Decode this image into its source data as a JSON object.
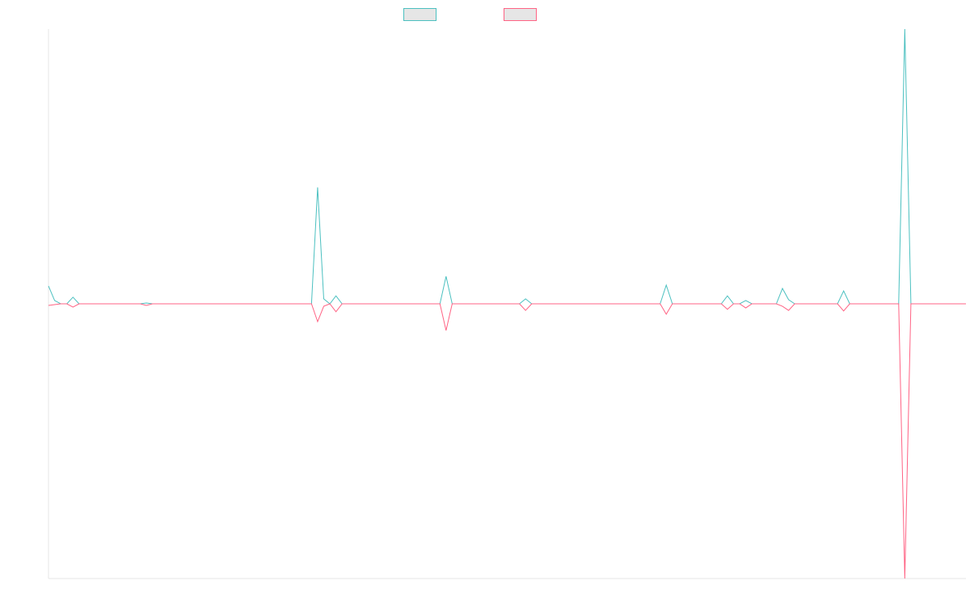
{
  "chart_data": {
    "type": "line",
    "legend": "top",
    "ylim": [
      -100,
      100
    ],
    "series": [
      {
        "color": "#4bc0c0",
        "values": [
          6.5,
          1.2,
          0,
          0,
          2.4,
          0,
          0,
          0,
          0,
          0,
          0,
          0,
          0,
          0,
          0,
          0,
          0.3,
          0,
          0,
          0,
          0,
          0,
          0,
          0,
          0,
          0,
          0,
          0,
          0,
          0,
          0,
          0,
          0,
          0,
          0,
          0,
          0,
          0,
          0,
          0,
          0,
          0,
          0,
          0,
          42.4,
          1.8,
          0,
          2.9,
          0,
          0,
          0,
          0,
          0,
          0,
          0,
          0,
          0,
          0,
          0,
          0,
          0,
          0,
          0,
          0,
          0,
          10,
          0,
          0,
          0,
          0,
          0,
          0,
          0,
          0,
          0,
          0,
          0,
          0,
          1.8,
          0,
          0,
          0,
          0,
          0,
          0,
          0,
          0,
          0,
          0,
          0,
          0,
          0,
          0,
          0,
          0,
          0,
          0,
          0,
          0,
          0,
          0,
          6.8,
          0,
          0,
          0,
          0,
          0,
          0,
          0,
          0,
          0,
          2.9,
          0,
          0,
          1.2,
          0,
          0,
          0,
          0,
          0,
          5.6,
          1.5,
          0,
          0,
          0,
          0,
          0,
          0,
          0,
          0,
          4.7,
          0,
          0,
          0,
          0,
          0,
          0,
          0,
          0,
          0,
          100,
          0,
          0,
          0,
          0,
          0,
          0,
          0,
          0,
          0,
          0
        ]
      },
      {
        "color": "#ff6384",
        "values": [
          -0.6,
          -0.3,
          0,
          0,
          -1.2,
          0,
          0,
          0,
          0,
          0,
          0,
          0,
          0,
          0,
          0,
          0,
          -0.6,
          0,
          0,
          0,
          0,
          0,
          0,
          0,
          0,
          0,
          0,
          0,
          0,
          0,
          0,
          0,
          0,
          0,
          0,
          0,
          0,
          0,
          0,
          0,
          0,
          0,
          0,
          0,
          -6.5,
          -0.9,
          0,
          -2.9,
          0,
          0,
          0,
          0,
          0,
          0,
          0,
          0,
          0,
          0,
          0,
          0,
          0,
          0,
          0,
          0,
          0,
          -9.7,
          0,
          0,
          0,
          0,
          0,
          0,
          0,
          0,
          0,
          0,
          0,
          0,
          -2.4,
          0,
          0,
          0,
          0,
          0,
          0,
          0,
          0,
          0,
          0,
          0,
          0,
          0,
          0,
          0,
          0,
          0,
          0,
          0,
          0,
          0,
          0,
          -3.8,
          0,
          0,
          0,
          0,
          0,
          0,
          0,
          0,
          0,
          -2,
          0,
          0,
          -1.5,
          0,
          0,
          0,
          0,
          0,
          -0.9,
          -2.4,
          0,
          0,
          0,
          0,
          0,
          0,
          0,
          0,
          -2.6,
          0,
          0,
          0,
          0,
          0,
          0,
          0,
          0,
          0,
          -100,
          0,
          0,
          0,
          0,
          0,
          0,
          0,
          0,
          0,
          0
        ]
      }
    ]
  }
}
